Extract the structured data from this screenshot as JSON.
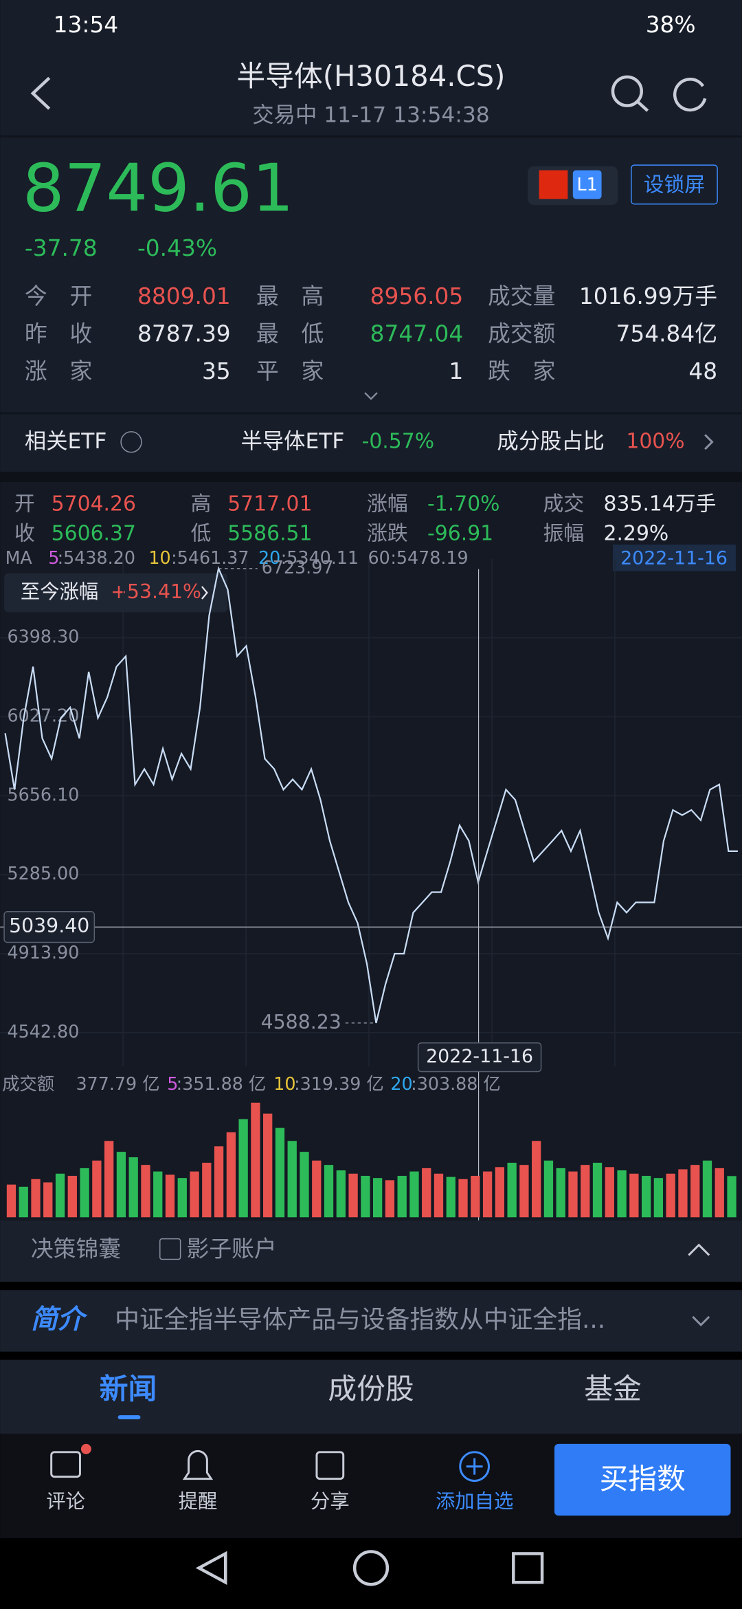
{
  "status": {
    "time": "13:54",
    "battery": "38%"
  },
  "header": {
    "title": "半导体(H30184.CS)",
    "subtitle": "交易中 11-17 13:54:38"
  },
  "quote": {
    "price": "8749.61",
    "change": "-37.78",
    "pct": "-0.43%",
    "badge": "L1",
    "lock": "设锁屏"
  },
  "stats": [
    [
      "今　开",
      "8809.01",
      "最　高",
      "8956.05",
      "成交量",
      "1016.99万手"
    ],
    [
      "昨　收",
      "8787.39",
      "最　低",
      "8747.04",
      "成交额",
      "754.84亿"
    ],
    [
      "涨　家",
      "35",
      "平　家",
      "1",
      "跌　家",
      "48"
    ]
  ],
  "etf": {
    "label": "相关ETF",
    "name": "半导体ETF",
    "pct": "-0.57%",
    "ratio_label": "成分股占比",
    "ratio": "100%"
  },
  "kline": [
    [
      "开",
      "5704.26"
    ],
    [
      "高",
      "5717.01"
    ],
    [
      "涨幅",
      "-1.70%"
    ],
    [
      "成交",
      "835.14万手"
    ],
    [
      "收",
      "5606.37"
    ],
    [
      "低",
      "5586.51"
    ],
    [
      "涨跌",
      "-96.91"
    ],
    [
      "振幅",
      "2.29%"
    ]
  ],
  "ma": {
    "label": "MA",
    "items": [
      [
        "5",
        ":5438.20"
      ],
      [
        "10",
        ":5461.37"
      ],
      [
        "20",
        ":5340.11"
      ],
      [
        "60",
        ":5478.19"
      ]
    ],
    "date": "2022-11-16"
  },
  "since": {
    "label": "至今涨幅",
    "value": "+53.41%"
  },
  "chart_data": {
    "type": "line",
    "color": "#c9dcf5",
    "values": [
      5950,
      5685,
      6022,
      6263,
      5926,
      5830,
      6022,
      6071,
      5926,
      6239,
      6022,
      6119,
      6263,
      6312,
      5709,
      5782,
      5709,
      5878,
      5733,
      5854,
      5782,
      6071,
      6504,
      6723.97,
      6625,
      6312,
      6360,
      6119,
      5830,
      5782,
      5685,
      5733,
      5685,
      5782,
      5637,
      5444,
      5300,
      5155,
      5059,
      4866,
      4588.23,
      4770,
      4914,
      4914,
      5107,
      5155,
      5203,
      5203,
      5348,
      5517,
      5444,
      5251,
      5396,
      5541,
      5685,
      5637,
      5492,
      5348,
      5396,
      5444,
      5492,
      5396,
      5492,
      5300,
      5107,
      4986,
      5155,
      5107,
      5155,
      5155,
      5155,
      5444,
      5589,
      5565,
      5589,
      5541,
      5685,
      5709,
      5396,
      5396
    ],
    "ylim": [
      4542.8,
      6769.4
    ],
    "yticks": [
      {
        "value": 4542.8,
        "label": "4542.80"
      },
      {
        "value": 4913.9,
        "label": "4913.90"
      },
      {
        "value": 5285,
        "label": "5285.00"
      },
      {
        "value": 5656.1,
        "label": "5656.10"
      },
      {
        "value": 6027.2,
        "label": "6027.20"
      },
      {
        "value": 6398.3,
        "label": "6398.30"
      }
    ],
    "grid": true,
    "max": {
      "value": 6723.97,
      "label": "6723.97"
    },
    "min": {
      "value": 4588.23,
      "label": "4588.23"
    },
    "crosshair": {
      "value": 5039.4,
      "label": "5039.40"
    }
  },
  "volume": {
    "type": "bar",
    "label": "成交额",
    "current": "377.79 亿",
    "ma": [
      [
        "5",
        ":351.88 亿"
      ],
      [
        "10",
        ":319.39 亿"
      ],
      [
        "20",
        ":303.88 亿"
      ]
    ],
    "ylim": [
      0,
      1100
    ],
    "values": [
      300,
      280,
      350,
      320,
      400,
      380,
      450,
      520,
      700,
      600,
      550,
      480,
      420,
      390,
      360,
      420,
      500,
      650,
      780,
      900,
      1050,
      950,
      820,
      700,
      600,
      520,
      480,
      430,
      400,
      380,
      360,
      340,
      380,
      420,
      450,
      400,
      370,
      350,
      380,
      420,
      460,
      500,
      480,
      700,
      520,
      450,
      420,
      480,
      500,
      460,
      430,
      400,
      380,
      360,
      400,
      440,
      480,
      520,
      450,
      377.79
    ],
    "colors": [
      "#e8534f",
      "#2dbb5a",
      "#e8534f",
      "#e8534f",
      "#2dbb5a",
      "#e8534f",
      "#2dbb5a",
      "#e8534f",
      "#e8534f",
      "#2dbb5a",
      "#2dbb5a",
      "#e8534f",
      "#2dbb5a",
      "#e8534f",
      "#2dbb5a",
      "#e8534f",
      "#e8534f",
      "#e8534f",
      "#e8534f",
      "#2dbb5a",
      "#e8534f",
      "#e8534f",
      "#2dbb5a",
      "#2dbb5a",
      "#2dbb5a",
      "#e8534f",
      "#2dbb5a",
      "#2dbb5a",
      "#e8534f",
      "#2dbb5a",
      "#2dbb5a",
      "#e8534f",
      "#2dbb5a",
      "#2dbb5a",
      "#e8534f",
      "#e8534f",
      "#2dbb5a",
      "#e8534f",
      "#e8534f",
      "#e8534f",
      "#e8534f",
      "#2dbb5a",
      "#e8534f",
      "#e8534f",
      "#2dbb5a",
      "#2dbb5a",
      "#e8534f",
      "#e8534f",
      "#2dbb5a",
      "#e8534f",
      "#2dbb5a",
      "#e8534f",
      "#2dbb5a",
      "#2dbb5a",
      "#e8534f",
      "#e8534f",
      "#e8534f",
      "#2dbb5a",
      "#e8534f",
      "#2dbb5a"
    ]
  },
  "tools": [
    "决策锦囊",
    "影子账户"
  ],
  "intro": {
    "label": "简介",
    "text": "中证全指半导体产品与设备指数从中证全指..."
  },
  "tabs": [
    "新闻",
    "成份股",
    "基金"
  ],
  "nav": [
    "评论",
    "提醒",
    "分享",
    "添加自选"
  ],
  "buy": "买指数"
}
